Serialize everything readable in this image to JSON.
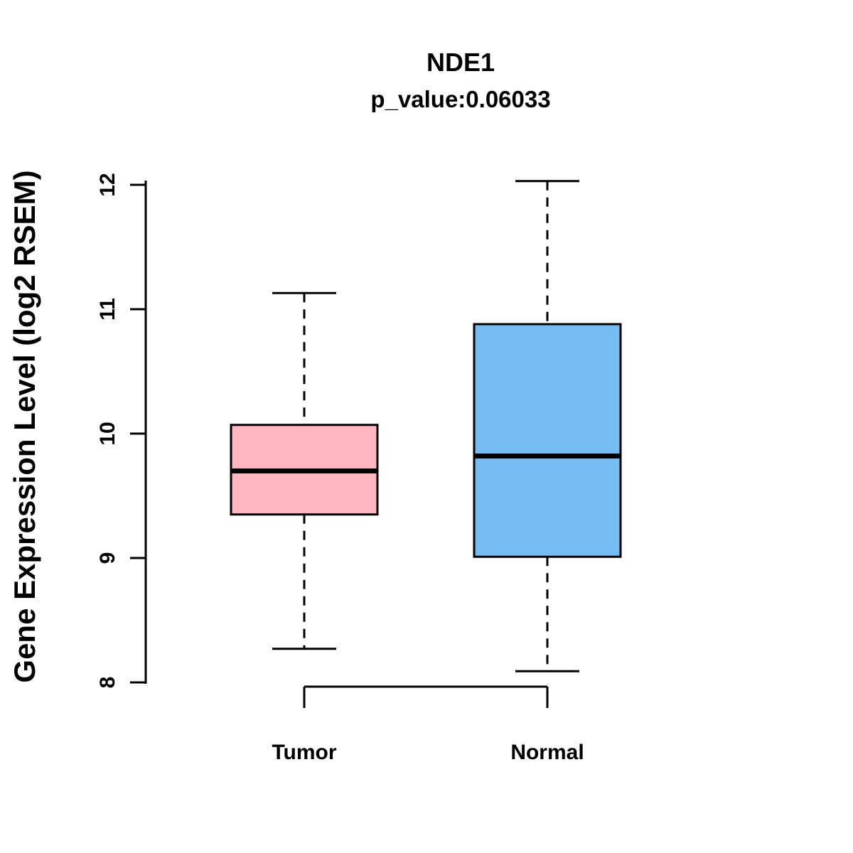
{
  "chart_data": {
    "type": "boxplot",
    "title": "NDE1",
    "subtitle": "p_value:0.06033",
    "ylabel": "Gene Expression Level (log2 RSEM)",
    "ylim": [
      8,
      12
    ],
    "yticks": [
      "8",
      "9",
      "10",
      "11",
      "12"
    ],
    "categories": [
      "Tumor",
      "Normal"
    ],
    "series": [
      {
        "name": "Tumor",
        "color": "#FFB6C1",
        "lower_whisker": 8.27,
        "q1": 9.35,
        "median": 9.7,
        "q3": 10.07,
        "upper_whisker": 11.13
      },
      {
        "name": "Normal",
        "color": "#74BCF2",
        "lower_whisker": 8.09,
        "q1": 9.01,
        "median": 9.82,
        "q3": 10.88,
        "upper_whisker": 12.03
      }
    ],
    "grid": false,
    "legend": "none",
    "axis_color": "#000000",
    "median_color": "#000000"
  }
}
